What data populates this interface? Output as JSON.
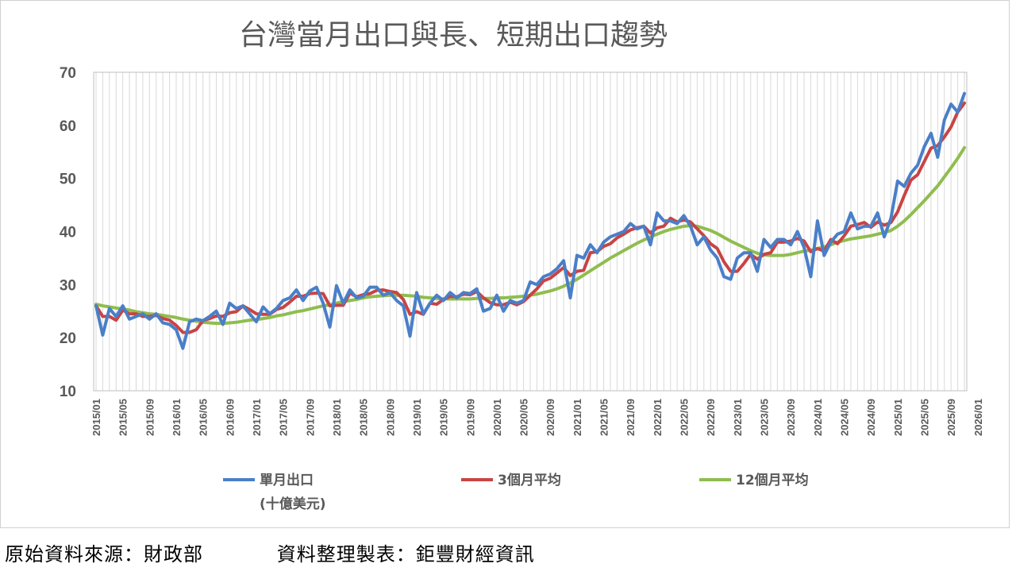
{
  "colors": {
    "monthly": "#4a7fc8",
    "ma3": "#c84444",
    "ma12": "#8fbd4f",
    "grid": "#d9d9d9",
    "axis_text": "#595959"
  },
  "footer": {
    "source": "原始資料來源：財政部",
    "compiler": "資料整理製表：鉅豐財經資訊"
  },
  "chart_data": {
    "type": "line",
    "title": "台灣當月出口與長、短期出口趨勢",
    "xlabel": "",
    "ylabel": "",
    "ylim": [
      10,
      70
    ],
    "yticks": [
      10,
      20,
      30,
      40,
      50,
      60,
      70
    ],
    "grid": "vertical",
    "legend_position": "bottom",
    "x_start": "2015/01",
    "x_end": "2026/01",
    "x_tick_labels": [
      "2015/01",
      "2015/05",
      "2015/09",
      "2016/01",
      "2016/05",
      "2016/09",
      "2017/01",
      "2017/05",
      "2017/09",
      "2018/01",
      "2018/05",
      "2018/09",
      "2019/01",
      "2019/05",
      "2019/09",
      "2020/01",
      "2020/05",
      "2020/09",
      "2021/01",
      "2021/05",
      "2021/09",
      "2022/01",
      "2022/05",
      "2022/09",
      "2023/01",
      "2023/05",
      "2023/09",
      "2024/01",
      "2024/05",
      "2024/09",
      "2025/01",
      "2025/05",
      "2025/09",
      "2026/01"
    ],
    "series": [
      {
        "name": "單月出口",
        "name_line2": "(十億美元)",
        "color": "#4a7fc8",
        "values": [
          26.0,
          20.5,
          25.5,
          24.0,
          26.0,
          23.5,
          24.0,
          24.5,
          23.5,
          24.5,
          22.8,
          22.5,
          21.5,
          18.0,
          23.0,
          23.5,
          23.2,
          24.0,
          25.0,
          22.5,
          26.5,
          25.5,
          26.0,
          24.5,
          23.0,
          25.8,
          24.5,
          25.5,
          27.0,
          27.5,
          29.0,
          27.0,
          28.8,
          29.5,
          26.5,
          22.0,
          29.8,
          26.5,
          29.0,
          27.5,
          27.8,
          29.5,
          29.5,
          28.0,
          28.5,
          27.0,
          26.0,
          20.3,
          28.5,
          24.5,
          26.5,
          28.0,
          27.0,
          28.5,
          27.5,
          28.5,
          28.3,
          29.2,
          25.0,
          25.5,
          28.0,
          25.0,
          27.0,
          26.5,
          27.0,
          30.5,
          30.0,
          31.5,
          32.0,
          33.0,
          34.5,
          27.5,
          35.5,
          35.0,
          37.5,
          36.0,
          38.0,
          39.0,
          39.5,
          40.0,
          41.5,
          40.5,
          41.0,
          37.5,
          43.5,
          42.0,
          42.0,
          41.5,
          43.0,
          41.0,
          37.5,
          39.0,
          36.5,
          35.0,
          31.5,
          31.0,
          35.0,
          36.0,
          36.0,
          32.5,
          38.5,
          37.0,
          38.5,
          38.5,
          37.5,
          40.0,
          37.0,
          31.5,
          42.0,
          35.5,
          38.0,
          39.5,
          40.0,
          43.5,
          40.5,
          41.0,
          41.0,
          43.5,
          39.0,
          42.5,
          49.5,
          48.5,
          51.0,
          52.5,
          56.0,
          58.5,
          54.0,
          61.0,
          64.0,
          62.5,
          66.0
        ]
      },
      {
        "name": "3個月平均",
        "color": "#c84444",
        "values": [
          26.0,
          24.0,
          24.0,
          23.3,
          25.2,
          24.5,
          24.5,
          24.0,
          24.0,
          24.2,
          23.6,
          23.3,
          22.3,
          21.0,
          21.0,
          21.5,
          23.2,
          23.6,
          24.1,
          24.0,
          24.7,
          24.9,
          26.0,
          25.3,
          24.5,
          24.4,
          24.4,
          25.3,
          25.7,
          26.7,
          27.8,
          27.8,
          28.3,
          28.4,
          28.3,
          26.0,
          26.1,
          26.1,
          28.4,
          27.7,
          28.1,
          28.3,
          28.9,
          29.0,
          28.7,
          28.5,
          27.2,
          24.4,
          24.9,
          24.4,
          26.5,
          26.3,
          27.2,
          27.8,
          27.7,
          28.2,
          28.1,
          28.7,
          27.5,
          26.6,
          26.2,
          26.2,
          26.7,
          26.2,
          26.8,
          28.0,
          29.2,
          30.7,
          31.2,
          32.2,
          33.2,
          31.7,
          32.5,
          32.7,
          36.0,
          36.2,
          37.2,
          37.7,
          38.8,
          39.5,
          40.3,
          40.7,
          41.0,
          39.7,
          40.7,
          41.0,
          42.5,
          41.8,
          42.2,
          41.8,
          40.5,
          39.2,
          37.7,
          36.8,
          34.3,
          32.5,
          32.5,
          34.0,
          35.7,
          34.8,
          35.7,
          36.0,
          38.0,
          38.0,
          38.2,
          38.7,
          38.2,
          36.2,
          36.8,
          36.3,
          38.5,
          37.7,
          39.2,
          41.0,
          41.3,
          41.7,
          40.8,
          41.8,
          41.2,
          41.7,
          43.7,
          46.8,
          49.7,
          50.7,
          53.2,
          55.7,
          56.2,
          57.8,
          59.7,
          62.5,
          64.2
        ]
      },
      {
        "name": "12個月平均",
        "color": "#8fbd4f",
        "values": [
          26.3,
          26.0,
          25.8,
          25.6,
          25.4,
          25.2,
          24.9,
          24.7,
          24.5,
          24.4,
          24.2,
          24.0,
          23.8,
          23.5,
          23.3,
          23.1,
          22.9,
          22.8,
          22.7,
          22.7,
          22.8,
          22.9,
          23.1,
          23.3,
          23.4,
          23.6,
          23.8,
          24.1,
          24.3,
          24.6,
          24.9,
          25.1,
          25.4,
          25.7,
          26.0,
          26.2,
          26.5,
          26.8,
          27.0,
          27.2,
          27.5,
          27.7,
          27.8,
          27.9,
          28.0,
          28.0,
          28.0,
          27.9,
          27.8,
          27.6,
          27.5,
          27.4,
          27.3,
          27.3,
          27.3,
          27.3,
          27.3,
          27.4,
          27.4,
          27.4,
          27.5,
          27.5,
          27.6,
          27.7,
          27.8,
          28.0,
          28.2,
          28.5,
          28.8,
          29.2,
          29.7,
          30.3,
          31.0,
          31.8,
          32.6,
          33.4,
          34.2,
          35.0,
          35.7,
          36.4,
          37.1,
          37.8,
          38.4,
          39.0,
          39.5,
          40.0,
          40.4,
          40.7,
          41.0,
          41.1,
          41.0,
          40.6,
          40.2,
          39.6,
          38.9,
          38.2,
          37.6,
          37.0,
          36.4,
          35.9,
          35.6,
          35.5,
          35.5,
          35.5,
          35.7,
          36.0,
          36.3,
          36.5,
          36.8,
          37.1,
          37.5,
          38.0,
          38.3,
          38.6,
          38.8,
          39.0,
          39.2,
          39.5,
          39.8,
          40.2,
          41.0,
          42.0,
          43.2,
          44.5,
          45.8,
          47.2,
          48.6,
          50.3,
          52.0,
          53.8,
          55.8
        ]
      }
    ]
  }
}
